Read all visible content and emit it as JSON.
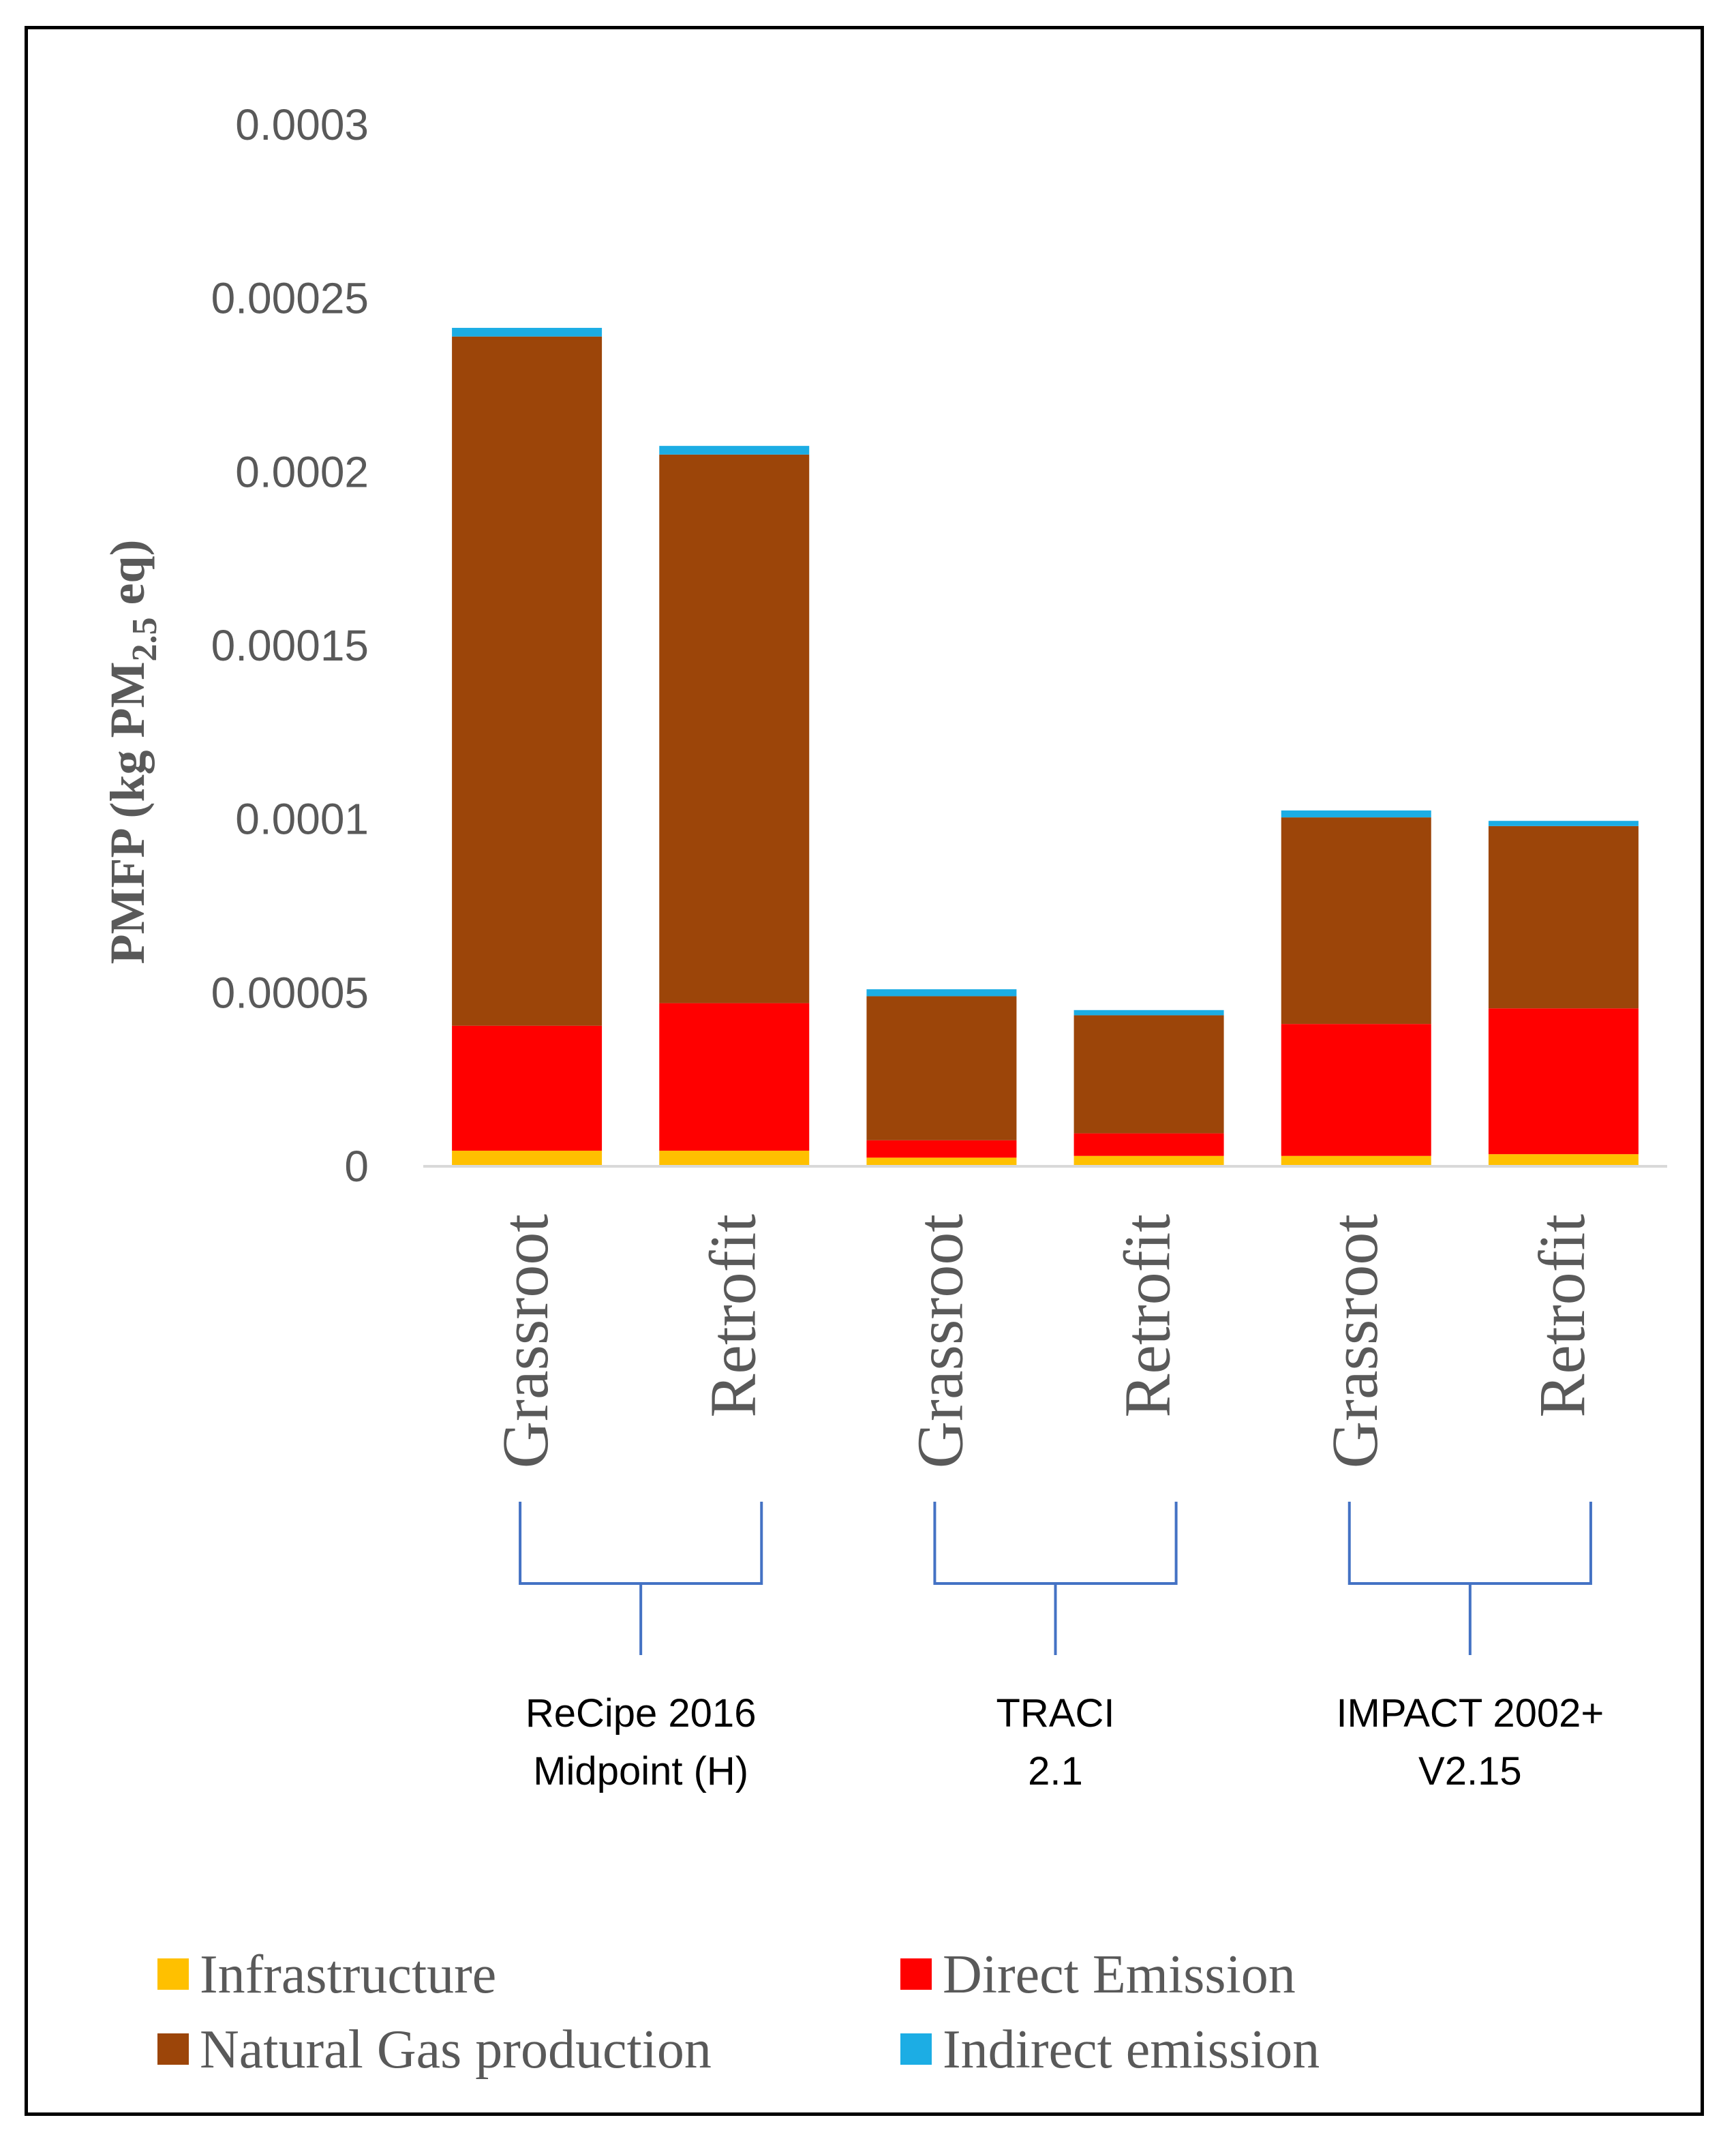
{
  "chart_data": {
    "type": "bar",
    "stacked": true,
    "ylabel_main": "PMFP (kg PM",
    "ylabel_sub": "2.5",
    "ylabel_end": " eq)",
    "ylim": [
      0,
      0.0003
    ],
    "yticks": [
      "0",
      "0.00005",
      "0.0001",
      "0.00015",
      "0.0002",
      "0.00025",
      "0.0003"
    ],
    "ytick_values": [
      0,
      5e-05,
      0.0001,
      0.00015,
      0.0002,
      0.00025,
      0.0003
    ],
    "grid": false,
    "legend_position": "bottom",
    "categories": [
      "Grassroot",
      "Retrofit",
      "Grassroot",
      "Retrofit",
      "Grassroot",
      "Retrofit"
    ],
    "groups": [
      {
        "lines": [
          "ReCipe 2016",
          "Midpoint (H)"
        ],
        "members": [
          0,
          1
        ]
      },
      {
        "lines": [
          "TRACI",
          "2.1"
        ],
        "members": [
          2,
          3
        ]
      },
      {
        "lines": [
          "IMPACT 2002+",
          "V2.15"
        ],
        "members": [
          4,
          5
        ]
      }
    ],
    "series": [
      {
        "name": "Infrastructure",
        "color": "#FFC000",
        "values": [
          4.5e-06,
          4.5e-06,
          2.5e-06,
          3e-06,
          3e-06,
          3.5e-06
        ]
      },
      {
        "name": "Direct Emission",
        "color": "#FF0000",
        "values": [
          3.6e-05,
          4.25e-05,
          5e-06,
          6.5e-06,
          3.8e-05,
          4.2e-05
        ]
      },
      {
        "name": "Natural Gas production",
        "color": "#9C4509",
        "values": [
          0.0001985,
          0.000158,
          4.15e-05,
          3.4e-05,
          5.95e-05,
          5.25e-05
        ]
      },
      {
        "name": "Indirect emission",
        "color": "#1CADE4",
        "values": [
          2.5e-06,
          2.5e-06,
          2e-06,
          1.5e-06,
          2e-06,
          1.5e-06
        ]
      }
    ]
  }
}
